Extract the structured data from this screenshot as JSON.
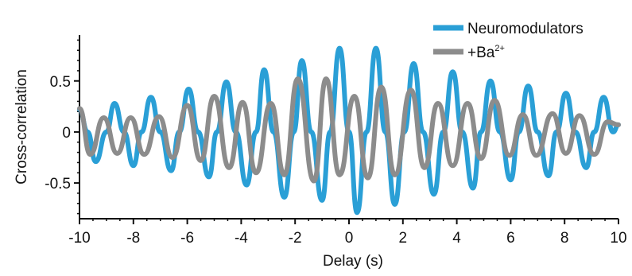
{
  "chart_data": {
    "type": "line",
    "title": "",
    "xlabel": "Delay (s)",
    "ylabel": "Cross-correlation",
    "xlim": [
      -10,
      10
    ],
    "ylim": [
      -0.85,
      0.95
    ],
    "xticks": [
      -10,
      -8,
      -6,
      -4,
      -2,
      0,
      2,
      4,
      6,
      8,
      10
    ],
    "xtick_labels": [
      "-10",
      "-8",
      "-6",
      "-4",
      "-2",
      "0",
      "2",
      "4",
      "6",
      "8",
      "10"
    ],
    "yticks": [
      0.5,
      0,
      -0.5
    ],
    "ytick_labels": [
      "0.5",
      "0",
      "-0.5"
    ],
    "grid": false,
    "legend_position": "top-right",
    "series": [
      {
        "name": "Neuromodulators",
        "color": "#2a9fd6",
        "x": [
          -10.0,
          -9.7,
          -9.4,
          -9.0,
          -8.7,
          -8.35,
          -8.0,
          -7.7,
          -7.35,
          -7.0,
          -6.6,
          -6.3,
          -5.95,
          -5.6,
          -5.2,
          -4.9,
          -4.55,
          -4.2,
          -3.8,
          -3.45,
          -3.15,
          -2.8,
          -2.4,
          -2.05,
          -1.75,
          -1.4,
          -1.0,
          -0.7,
          -0.35,
          0.0,
          0.3,
          0.65,
          1.0,
          1.35,
          1.7,
          2.05,
          2.4,
          2.75,
          3.15,
          3.5,
          3.85,
          4.2,
          4.6,
          4.9,
          5.25,
          5.6,
          6.0,
          6.3,
          6.65,
          7.0,
          7.4,
          7.7,
          8.05,
          8.4,
          8.8,
          9.1,
          9.45,
          9.8,
          10.0
        ],
        "y": [
          0.22,
          0.0,
          -0.29,
          0.0,
          0.28,
          0.0,
          -0.33,
          0.0,
          0.34,
          0.0,
          -0.38,
          0.0,
          0.42,
          0.0,
          -0.44,
          0.0,
          0.49,
          0.0,
          -0.52,
          0.0,
          0.61,
          0.0,
          -0.64,
          0.0,
          0.7,
          0.0,
          -0.67,
          0.0,
          0.82,
          0.0,
          -0.79,
          0.0,
          0.82,
          0.0,
          -0.71,
          0.0,
          0.67,
          0.0,
          -0.61,
          0.0,
          0.59,
          0.0,
          -0.55,
          0.0,
          0.5,
          0.0,
          -0.47,
          0.0,
          0.45,
          0.0,
          -0.43,
          0.0,
          0.38,
          0.0,
          -0.35,
          0.0,
          0.34,
          0.0,
          0.07
        ]
      },
      {
        "name": "+Ba2+",
        "color": "#8c8c8c",
        "x": [
          -10.0,
          -9.6,
          -9.1,
          -8.6,
          -8.1,
          -7.6,
          -7.05,
          -6.55,
          -6.0,
          -5.5,
          -5.0,
          -4.45,
          -3.95,
          -3.45,
          -2.9,
          -2.4,
          -1.9,
          -1.3,
          -0.85,
          -0.35,
          0.2,
          0.7,
          1.2,
          1.7,
          2.3,
          2.8,
          3.3,
          3.85,
          4.4,
          4.9,
          5.4,
          5.95,
          6.45,
          6.95,
          7.55,
          8.05,
          8.55,
          9.1,
          9.6,
          10.0
        ],
        "y": [
          0.23,
          -0.22,
          0.14,
          -0.21,
          0.14,
          -0.22,
          0.15,
          -0.25,
          0.26,
          -0.28,
          0.35,
          -0.35,
          0.29,
          -0.4,
          0.28,
          -0.42,
          0.52,
          -0.48,
          0.52,
          -0.42,
          0.35,
          -0.45,
          0.44,
          -0.42,
          0.41,
          -0.35,
          0.28,
          -0.33,
          0.28,
          -0.26,
          0.31,
          -0.23,
          0.17,
          -0.23,
          0.18,
          -0.21,
          0.16,
          -0.22,
          0.1,
          0.07
        ]
      }
    ]
  },
  "legend": {
    "series1_label": "Neuromodulators",
    "series2_base": "+Ba",
    "series2_sup": "2+"
  }
}
